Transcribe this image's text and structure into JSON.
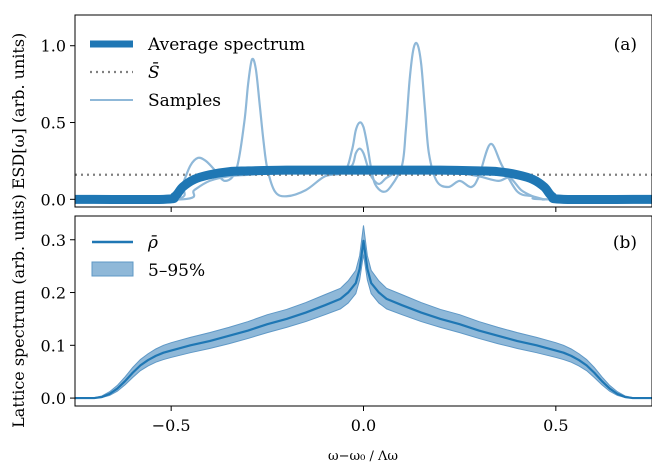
{
  "chart_data": [
    {
      "type": "line",
      "panel_label": "(a)",
      "ylabel": "ESD[ω]  (arb. units)",
      "xlim": [
        -0.75,
        0.75
      ],
      "ylim": [
        -0.05,
        1.2
      ],
      "yticks": [
        0.0,
        0.5,
        1.0
      ],
      "ytick_labels": [
        "0.0",
        "0.5",
        "1.0"
      ],
      "xticks": [
        -0.5,
        0.0,
        0.5
      ],
      "colors": {
        "average": "#1f77b4",
        "mean_S": "#808080",
        "samples": "#8fb8d8"
      },
      "legend": {
        "position": "top-left",
        "entries": [
          {
            "label": "Average spectrum",
            "style": "thick-line",
            "color": "#1f77b4"
          },
          {
            "label": "S̄",
            "style": "dotted-line",
            "color": "#808080"
          },
          {
            "label": "Samples",
            "style": "line",
            "color": "#8fb8d8"
          }
        ]
      },
      "series": [
        {
          "name": "Average spectrum",
          "x": [
            -0.75,
            -0.52,
            -0.49,
            -0.47,
            -0.44,
            -0.4,
            -0.35,
            -0.3,
            -0.2,
            -0.1,
            0.0,
            0.1,
            0.2,
            0.3,
            0.35,
            0.4,
            0.44,
            0.47,
            0.49,
            0.52,
            0.75
          ],
          "y": [
            0.0,
            0.0,
            0.02,
            0.08,
            0.13,
            0.16,
            0.18,
            0.185,
            0.19,
            0.19,
            0.19,
            0.19,
            0.19,
            0.185,
            0.18,
            0.16,
            0.13,
            0.08,
            0.02,
            0.0,
            0.0
          ]
        },
        {
          "name": "S̄",
          "x": [
            -0.75,
            0.75
          ],
          "y": [
            0.16,
            0.16
          ]
        },
        {
          "name": "Sample 1",
          "x": [
            -0.75,
            -0.49,
            -0.47,
            -0.45,
            -0.43,
            -0.41,
            -0.39,
            -0.36,
            -0.33,
            -0.31,
            -0.3,
            -0.29,
            -0.28,
            -0.27,
            -0.26,
            -0.25,
            -0.23,
            -0.2,
            -0.15,
            -0.1,
            -0.05,
            -0.03,
            -0.02,
            -0.01,
            0.0,
            0.01,
            0.02,
            0.03,
            0.05,
            0.07,
            0.1,
            0.11,
            0.12,
            0.13,
            0.14,
            0.15,
            0.16,
            0.17,
            0.19,
            0.22,
            0.25,
            0.28,
            0.3,
            0.33,
            0.36,
            0.4,
            0.44,
            0.47,
            0.49,
            0.75
          ],
          "y": [
            0.0,
            0.0,
            0.1,
            0.22,
            0.27,
            0.25,
            0.2,
            0.12,
            0.2,
            0.5,
            0.75,
            0.91,
            0.85,
            0.62,
            0.38,
            0.2,
            0.05,
            0.02,
            0.06,
            0.15,
            0.18,
            0.32,
            0.45,
            0.5,
            0.47,
            0.35,
            0.2,
            0.1,
            0.05,
            0.08,
            0.22,
            0.45,
            0.78,
            0.98,
            1.01,
            0.88,
            0.58,
            0.3,
            0.12,
            0.08,
            0.12,
            0.08,
            0.15,
            0.36,
            0.22,
            0.05,
            0.02,
            0.0,
            0.0,
            0.0
          ]
        },
        {
          "name": "Sample 2",
          "x": [
            -0.75,
            -0.47,
            -0.44,
            -0.4,
            -0.35,
            -0.3,
            -0.25,
            -0.2,
            -0.15,
            -0.1,
            -0.06,
            -0.03,
            -0.02,
            -0.01,
            0.0,
            0.01,
            0.02,
            0.04,
            0.06,
            0.09,
            0.12,
            0.16,
            0.2,
            0.25,
            0.3,
            0.35,
            0.38,
            0.41,
            0.44,
            0.47,
            0.75
          ],
          "y": [
            0.0,
            0.0,
            0.06,
            0.12,
            0.15,
            0.16,
            0.17,
            0.18,
            0.19,
            0.19,
            0.18,
            0.22,
            0.3,
            0.33,
            0.3,
            0.22,
            0.15,
            0.1,
            0.14,
            0.18,
            0.19,
            0.19,
            0.18,
            0.17,
            0.15,
            0.12,
            0.14,
            0.06,
            0.02,
            0.0,
            0.0
          ]
        }
      ]
    },
    {
      "type": "area",
      "panel_label": "(b)",
      "ylabel": "Lattice spectrum  (arb. units)",
      "xlabel": "ω−ω₀ / Λω",
      "xlim": [
        -0.75,
        0.75
      ],
      "ylim": [
        -0.015,
        0.345
      ],
      "xticks": [
        -0.5,
        0.0,
        0.5
      ],
      "xtick_labels": [
        "−0.5",
        "0.0",
        "0.5"
      ],
      "yticks": [
        0.0,
        0.1,
        0.2,
        0.3
      ],
      "ytick_labels": [
        "0.0",
        "0.1",
        "0.2",
        "0.3"
      ],
      "colors": {
        "mean": "#1f77b4",
        "band": "#8fb8d8"
      },
      "legend": {
        "position": "top-left",
        "entries": [
          {
            "label": "ρ̄",
            "style": "line",
            "color": "#1f77b4"
          },
          {
            "label": "5–95%",
            "style": "patch",
            "color": "#8fb8d8"
          }
        ]
      },
      "series": [
        {
          "name": "ρ̄",
          "x": [
            -0.75,
            -0.7,
            -0.68,
            -0.66,
            -0.64,
            -0.62,
            -0.6,
            -0.58,
            -0.56,
            -0.54,
            -0.52,
            -0.5,
            -0.45,
            -0.4,
            -0.35,
            -0.3,
            -0.25,
            -0.2,
            -0.15,
            -0.1,
            -0.06,
            -0.04,
            -0.02,
            -0.01,
            0.0,
            0.01,
            0.02,
            0.04,
            0.06,
            0.1,
            0.15,
            0.2,
            0.25,
            0.3,
            0.35,
            0.4,
            0.45,
            0.5,
            0.52,
            0.54,
            0.56,
            0.58,
            0.6,
            0.62,
            0.64,
            0.66,
            0.68,
            0.7,
            0.75
          ],
          "y": [
            0.0,
            0.0,
            0.002,
            0.008,
            0.018,
            0.032,
            0.048,
            0.062,
            0.072,
            0.08,
            0.086,
            0.09,
            0.1,
            0.108,
            0.118,
            0.128,
            0.14,
            0.15,
            0.162,
            0.176,
            0.188,
            0.2,
            0.218,
            0.245,
            0.298,
            0.245,
            0.218,
            0.2,
            0.188,
            0.176,
            0.162,
            0.15,
            0.14,
            0.128,
            0.118,
            0.108,
            0.1,
            0.09,
            0.086,
            0.08,
            0.072,
            0.062,
            0.048,
            0.032,
            0.018,
            0.008,
            0.002,
            0.0,
            0.0
          ]
        },
        {
          "name": "5–95%",
          "x": [
            -0.75,
            -0.7,
            -0.68,
            -0.66,
            -0.64,
            -0.62,
            -0.6,
            -0.58,
            -0.56,
            -0.54,
            -0.52,
            -0.5,
            -0.45,
            -0.4,
            -0.35,
            -0.3,
            -0.25,
            -0.2,
            -0.15,
            -0.1,
            -0.06,
            -0.04,
            -0.02,
            -0.01,
            0.0,
            0.01,
            0.02,
            0.04,
            0.06,
            0.1,
            0.15,
            0.2,
            0.25,
            0.3,
            0.35,
            0.4,
            0.45,
            0.5,
            0.52,
            0.54,
            0.56,
            0.58,
            0.6,
            0.62,
            0.64,
            0.66,
            0.68,
            0.7,
            0.75
          ],
          "lower": [
            0.0,
            0.0,
            0.001,
            0.005,
            0.013,
            0.025,
            0.039,
            0.052,
            0.061,
            0.068,
            0.073,
            0.077,
            0.086,
            0.094,
            0.103,
            0.113,
            0.124,
            0.134,
            0.145,
            0.158,
            0.169,
            0.18,
            0.198,
            0.224,
            0.272,
            0.224,
            0.198,
            0.18,
            0.169,
            0.158,
            0.145,
            0.134,
            0.124,
            0.113,
            0.103,
            0.094,
            0.086,
            0.077,
            0.073,
            0.068,
            0.061,
            0.052,
            0.039,
            0.025,
            0.013,
            0.005,
            0.001,
            0.0,
            0.0
          ],
          "upper": [
            0.0,
            0.001,
            0.004,
            0.012,
            0.024,
            0.04,
            0.058,
            0.073,
            0.084,
            0.093,
            0.1,
            0.105,
            0.115,
            0.124,
            0.134,
            0.145,
            0.158,
            0.168,
            0.181,
            0.196,
            0.208,
            0.222,
            0.242,
            0.27,
            0.327,
            0.27,
            0.242,
            0.222,
            0.208,
            0.196,
            0.181,
            0.168,
            0.158,
            0.145,
            0.134,
            0.124,
            0.115,
            0.105,
            0.1,
            0.093,
            0.084,
            0.073,
            0.058,
            0.04,
            0.024,
            0.012,
            0.004,
            0.001,
            0.0
          ]
        }
      ]
    }
  ]
}
